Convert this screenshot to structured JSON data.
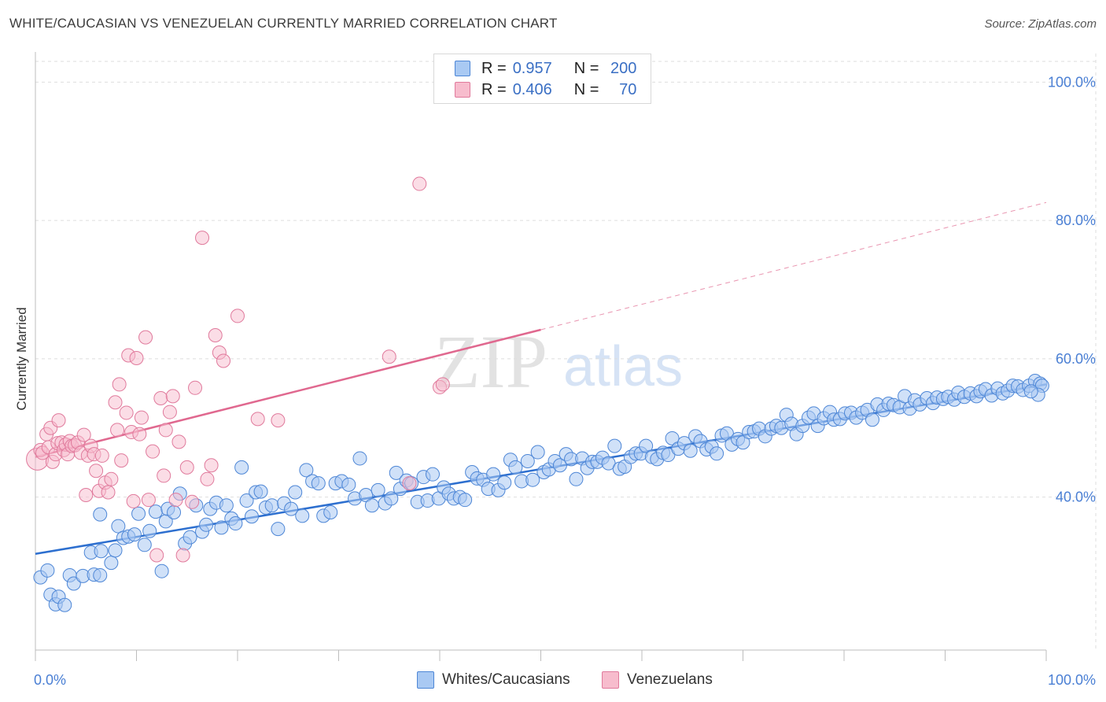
{
  "title": "WHITE/CAUCASIAN VS VENEZUELAN CURRENTLY MARRIED CORRELATION CHART",
  "source": "Source: ZipAtlas.com",
  "watermark": {
    "zip": "ZIP",
    "atlas": "atlas"
  },
  "colors": {
    "blue_fill": "#a9c9f3",
    "blue_stroke": "#4d86d6",
    "blue_line": "#2d6fcf",
    "pink_fill": "#f7bccd",
    "pink_stroke": "#e07a9c",
    "pink_line": "#e0688f",
    "grid": "#dedede",
    "axis_text": "#4a7fd4"
  },
  "legend": {
    "rows": [
      {
        "r_label": "R = ",
        "r_value": "0.957",
        "n_label": "N = ",
        "n_value": "200"
      },
      {
        "r_label": "R = ",
        "r_value": "0.406",
        "n_label": "N = ",
        "n_value": "70"
      }
    ]
  },
  "bottom_legend": [
    "Whites/Caucasians",
    "Venezuelans"
  ],
  "chart_data": {
    "type": "scatter",
    "ylabel": "Currently Married",
    "xlim": [
      0,
      100
    ],
    "ylim": [
      18,
      103
    ],
    "x_tick_labels": [
      "0.0%",
      "100.0%"
    ],
    "y_ticks": [
      40,
      60,
      80,
      100
    ],
    "y_tick_labels": [
      "40.0%",
      "60.0%",
      "80.0%",
      "100.0%"
    ],
    "grid": "horizontal dashed",
    "series": [
      {
        "name": "Whites/Caucasians",
        "color": "blue",
        "r": 0.957,
        "n": 200,
        "trend": {
          "x0": 0,
          "y0": 31.8,
          "x1": 100,
          "y1": 56.3
        },
        "points": [
          [
            0.5,
            28.4
          ],
          [
            1.2,
            29.4
          ],
          [
            1.5,
            25.9
          ],
          [
            2.0,
            24.5
          ],
          [
            2.3,
            25.6
          ],
          [
            2.9,
            24.4
          ],
          [
            3.4,
            28.7
          ],
          [
            3.8,
            27.5
          ],
          [
            4.7,
            28.6
          ],
          [
            5.8,
            28.8
          ],
          [
            6.4,
            28.7
          ],
          [
            5.5,
            32.0
          ],
          [
            6.5,
            32.2
          ],
          [
            6.4,
            37.5
          ],
          [
            7.5,
            30.5
          ],
          [
            7.9,
            32.3
          ],
          [
            8.2,
            35.8
          ],
          [
            8.7,
            34.1
          ],
          [
            9.2,
            34.3
          ],
          [
            9.8,
            34.6
          ],
          [
            10.2,
            37.6
          ],
          [
            10.8,
            33.1
          ],
          [
            11.3,
            35.1
          ],
          [
            11.9,
            37.9
          ],
          [
            12.5,
            29.3
          ],
          [
            12.9,
            36.5
          ],
          [
            13.1,
            38.3
          ],
          [
            13.7,
            37.8
          ],
          [
            14.3,
            40.5
          ],
          [
            14.8,
            33.3
          ],
          [
            15.3,
            34.2
          ],
          [
            15.9,
            38.8
          ],
          [
            16.5,
            35.0
          ],
          [
            16.9,
            36.0
          ],
          [
            17.3,
            38.3
          ],
          [
            17.9,
            39.2
          ],
          [
            18.4,
            35.6
          ],
          [
            18.9,
            38.8
          ],
          [
            19.4,
            36.9
          ],
          [
            19.8,
            36.2
          ],
          [
            20.4,
            44.3
          ],
          [
            20.9,
            39.5
          ],
          [
            21.4,
            37.2
          ],
          [
            21.8,
            40.7
          ],
          [
            22.3,
            40.8
          ],
          [
            22.8,
            38.5
          ],
          [
            23.4,
            38.8
          ],
          [
            24.0,
            35.4
          ],
          [
            24.6,
            39.1
          ],
          [
            25.3,
            38.3
          ],
          [
            25.7,
            40.7
          ],
          [
            26.4,
            37.3
          ],
          [
            26.8,
            43.9
          ],
          [
            27.4,
            42.3
          ],
          [
            28.0,
            42.0
          ],
          [
            28.5,
            37.3
          ],
          [
            29.2,
            37.8
          ],
          [
            29.7,
            42.0
          ],
          [
            30.3,
            42.3
          ],
          [
            31.0,
            41.8
          ],
          [
            31.6,
            39.8
          ],
          [
            32.1,
            45.6
          ],
          [
            32.7,
            40.3
          ],
          [
            33.3,
            38.8
          ],
          [
            33.9,
            41.0
          ],
          [
            34.6,
            39.1
          ],
          [
            35.2,
            39.8
          ],
          [
            35.7,
            43.5
          ],
          [
            36.1,
            41.2
          ],
          [
            36.7,
            42.4
          ],
          [
            37.2,
            42.0
          ],
          [
            37.8,
            39.3
          ],
          [
            38.4,
            42.9
          ],
          [
            38.8,
            39.5
          ],
          [
            39.3,
            43.3
          ],
          [
            39.9,
            39.8
          ],
          [
            40.4,
            41.4
          ],
          [
            40.9,
            40.5
          ],
          [
            41.4,
            39.8
          ],
          [
            42.0,
            40.0
          ],
          [
            42.5,
            39.6
          ],
          [
            43.2,
            43.6
          ],
          [
            43.7,
            42.7
          ],
          [
            44.3,
            42.5
          ],
          [
            44.8,
            41.2
          ],
          [
            45.3,
            43.3
          ],
          [
            45.8,
            41.0
          ],
          [
            46.4,
            42.1
          ],
          [
            47.0,
            45.4
          ],
          [
            47.5,
            44.3
          ],
          [
            48.1,
            42.3
          ],
          [
            48.7,
            45.2
          ],
          [
            49.2,
            42.5
          ],
          [
            49.7,
            46.5
          ],
          [
            50.3,
            43.6
          ],
          [
            50.8,
            44.0
          ],
          [
            51.4,
            45.2
          ],
          [
            51.9,
            44.6
          ],
          [
            52.5,
            46.2
          ],
          [
            53.0,
            45.5
          ],
          [
            53.5,
            42.6
          ],
          [
            54.1,
            45.6
          ],
          [
            54.6,
            44.2
          ],
          [
            55.1,
            45.1
          ],
          [
            55.6,
            45.1
          ],
          [
            56.1,
            45.7
          ],
          [
            56.7,
            44.9
          ],
          [
            57.3,
            47.4
          ],
          [
            57.8,
            44.1
          ],
          [
            58.3,
            44.4
          ],
          [
            58.9,
            45.8
          ],
          [
            59.4,
            46.3
          ],
          [
            59.9,
            46.3
          ],
          [
            60.4,
            47.4
          ],
          [
            61.0,
            45.8
          ],
          [
            61.5,
            45.5
          ],
          [
            62.1,
            46.4
          ],
          [
            62.6,
            46.1
          ],
          [
            63.0,
            48.5
          ],
          [
            63.6,
            47.0
          ],
          [
            64.2,
            47.8
          ],
          [
            64.8,
            46.7
          ],
          [
            65.3,
            48.8
          ],
          [
            65.8,
            48.1
          ],
          [
            66.4,
            46.9
          ],
          [
            66.9,
            47.3
          ],
          [
            67.4,
            46.3
          ],
          [
            67.9,
            48.9
          ],
          [
            68.4,
            49.2
          ],
          [
            68.9,
            47.6
          ],
          [
            69.5,
            48.4
          ],
          [
            70.0,
            47.9
          ],
          [
            70.6,
            49.4
          ],
          [
            71.1,
            49.5
          ],
          [
            71.6,
            49.9
          ],
          [
            72.2,
            48.8
          ],
          [
            72.8,
            49.9
          ],
          [
            73.3,
            50.3
          ],
          [
            73.8,
            50.0
          ],
          [
            74.3,
            51.9
          ],
          [
            74.8,
            50.6
          ],
          [
            75.3,
            49.1
          ],
          [
            75.9,
            50.3
          ],
          [
            76.5,
            51.5
          ],
          [
            77.0,
            52.1
          ],
          [
            77.4,
            50.3
          ],
          [
            78.0,
            51.4
          ],
          [
            78.6,
            52.3
          ],
          [
            79.0,
            51.2
          ],
          [
            79.6,
            51.3
          ],
          [
            80.1,
            52.1
          ],
          [
            80.7,
            52.2
          ],
          [
            81.2,
            51.5
          ],
          [
            81.8,
            52.2
          ],
          [
            82.3,
            52.6
          ],
          [
            82.8,
            51.2
          ],
          [
            83.3,
            53.4
          ],
          [
            83.9,
            52.6
          ],
          [
            84.4,
            53.5
          ],
          [
            84.9,
            53.3
          ],
          [
            85.5,
            53.0
          ],
          [
            86.0,
            54.6
          ],
          [
            86.5,
            52.8
          ],
          [
            87.0,
            54.0
          ],
          [
            87.5,
            53.4
          ],
          [
            88.2,
            54.3
          ],
          [
            88.8,
            53.6
          ],
          [
            89.2,
            54.4
          ],
          [
            89.8,
            54.2
          ],
          [
            90.3,
            54.5
          ],
          [
            90.9,
            54.1
          ],
          [
            91.3,
            55.1
          ],
          [
            91.9,
            54.5
          ],
          [
            92.5,
            55.0
          ],
          [
            93.1,
            54.6
          ],
          [
            93.5,
            55.3
          ],
          [
            94.0,
            55.6
          ],
          [
            94.6,
            54.7
          ],
          [
            95.2,
            55.7
          ],
          [
            95.7,
            55.0
          ],
          [
            96.2,
            55.4
          ],
          [
            96.7,
            56.1
          ],
          [
            97.2,
            56.0
          ],
          [
            97.7,
            55.5
          ],
          [
            98.3,
            56.1
          ],
          [
            98.9,
            56.8
          ],
          [
            99.4,
            56.4
          ],
          [
            99.6,
            56.1
          ],
          [
            99.2,
            54.8
          ],
          [
            98.5,
            55.3
          ]
        ]
      },
      {
        "name": "Venezuelans",
        "color": "pink",
        "r": 0.406,
        "n": 70,
        "trend_solid": {
          "x0": 0,
          "y0": 45.8,
          "x1": 50,
          "y1": 64.2
        },
        "trend_dashed": {
          "x0": 50,
          "y0": 64.2,
          "x1": 100,
          "y1": 82.6
        },
        "points": [
          [
            0.2,
            45.5
          ],
          [
            0.5,
            46.8
          ],
          [
            0.7,
            46.4
          ],
          [
            1.1,
            49.1
          ],
          [
            1.3,
            47.2
          ],
          [
            1.5,
            50.0
          ],
          [
            1.7,
            45.1
          ],
          [
            2.0,
            46.2
          ],
          [
            2.2,
            47.8
          ],
          [
            2.3,
            51.1
          ],
          [
            2.6,
            47.9
          ],
          [
            2.8,
            46.8
          ],
          [
            3.0,
            47.6
          ],
          [
            3.2,
            46.2
          ],
          [
            3.4,
            48.1
          ],
          [
            3.6,
            47.4
          ],
          [
            3.9,
            47.5
          ],
          [
            4.2,
            47.9
          ],
          [
            4.5,
            46.4
          ],
          [
            4.8,
            49.0
          ],
          [
            5.0,
            40.3
          ],
          [
            5.2,
            46.0
          ],
          [
            5.5,
            47.4
          ],
          [
            5.8,
            46.2
          ],
          [
            6.0,
            43.8
          ],
          [
            6.3,
            40.9
          ],
          [
            6.6,
            46.0
          ],
          [
            6.9,
            42.1
          ],
          [
            7.2,
            40.7
          ],
          [
            7.5,
            42.6
          ],
          [
            7.9,
            53.7
          ],
          [
            8.1,
            49.7
          ],
          [
            8.3,
            56.3
          ],
          [
            8.5,
            45.3
          ],
          [
            9.0,
            52.2
          ],
          [
            9.2,
            60.5
          ],
          [
            9.5,
            49.4
          ],
          [
            9.7,
            39.4
          ],
          [
            10.0,
            60.1
          ],
          [
            10.3,
            49.1
          ],
          [
            10.5,
            51.5
          ],
          [
            10.9,
            63.1
          ],
          [
            11.2,
            39.6
          ],
          [
            11.6,
            46.6
          ],
          [
            12.0,
            31.6
          ],
          [
            12.4,
            54.3
          ],
          [
            12.7,
            43.1
          ],
          [
            12.9,
            49.7
          ],
          [
            13.3,
            52.3
          ],
          [
            13.6,
            54.6
          ],
          [
            13.9,
            39.6
          ],
          [
            14.2,
            48.0
          ],
          [
            14.6,
            31.6
          ],
          [
            15.0,
            44.3
          ],
          [
            15.5,
            39.3
          ],
          [
            15.8,
            55.8
          ],
          [
            16.5,
            77.5
          ],
          [
            17.0,
            42.6
          ],
          [
            17.4,
            44.6
          ],
          [
            17.8,
            63.4
          ],
          [
            18.2,
            60.9
          ],
          [
            18.6,
            59.7
          ],
          [
            20.0,
            66.2
          ],
          [
            22.0,
            51.3
          ],
          [
            24.0,
            51.1
          ],
          [
            35.0,
            60.3
          ],
          [
            37.0,
            42.0
          ],
          [
            38.0,
            85.3
          ],
          [
            40.0,
            55.9
          ],
          [
            40.3,
            56.3
          ]
        ]
      }
    ]
  }
}
